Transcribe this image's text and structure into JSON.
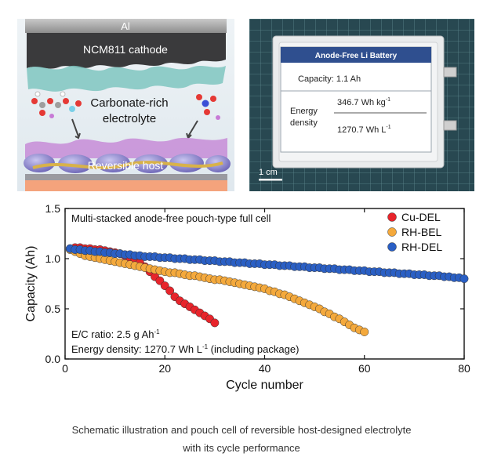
{
  "schematic": {
    "top_label": "Al",
    "cathode_label": "NCM811 cathode",
    "electrolyte_label_1": "Carbonate-rich",
    "electrolyte_label_2": "electrolyte",
    "host_label": "Reversible host"
  },
  "photo": {
    "card_title": "Anode-Free Li Battery",
    "capacity_text": "Capacity:  1.1 Ah",
    "energy_label_1": "Energy",
    "energy_label_2": "density",
    "energy_value_1": "346.7 Wh kg",
    "energy_value_1_sup": "-1",
    "energy_value_2": "1270.7 Wh L",
    "energy_value_2_sup": "-1",
    "scale_bar_label": "1 cm"
  },
  "chart_data": {
    "type": "scatter",
    "title": "Multi-stacked anode-free pouch-type full cell",
    "xlabel": "Cycle number",
    "ylabel": "Capacity (Ah)",
    "xlim": [
      0,
      80
    ],
    "ylim": [
      0.0,
      1.5
    ],
    "xticks": [
      0,
      20,
      40,
      60,
      80
    ],
    "yticks": [
      0.0,
      0.5,
      1.0,
      1.5
    ],
    "ytick_labels": [
      "0.0",
      "0.5",
      "1.0",
      "1.5"
    ],
    "legend_position": "top-right",
    "annotation_1": "E/C ratio: 2.5 g Ah",
    "annotation_1_sup": "-1",
    "annotation_2": "Energy density: 1270.7 Wh L",
    "annotation_2_sup": "-1",
    "annotation_2_tail": " (including package)",
    "series": [
      {
        "name": "Cu-DEL",
        "color": "#e8242b",
        "x": [
          1,
          2,
          3,
          4,
          5,
          6,
          7,
          8,
          9,
          10,
          11,
          12,
          13,
          14,
          15,
          16,
          17,
          18,
          19,
          20,
          21,
          22,
          23,
          24,
          25,
          26,
          27,
          28,
          29,
          30
        ],
        "y": [
          1.1,
          1.11,
          1.11,
          1.1,
          1.1,
          1.09,
          1.09,
          1.08,
          1.07,
          1.06,
          1.05,
          1.03,
          1.01,
          0.99,
          0.96,
          0.92,
          0.87,
          0.82,
          0.78,
          0.73,
          0.68,
          0.62,
          0.58,
          0.55,
          0.52,
          0.49,
          0.46,
          0.43,
          0.4,
          0.36
        ]
      },
      {
        "name": "RH-BEL",
        "color": "#f4a93c",
        "x": [
          1,
          2,
          3,
          4,
          5,
          6,
          7,
          8,
          9,
          10,
          11,
          12,
          13,
          14,
          15,
          16,
          17,
          18,
          19,
          20,
          21,
          22,
          23,
          24,
          25,
          26,
          27,
          28,
          29,
          30,
          31,
          32,
          33,
          34,
          35,
          36,
          37,
          38,
          39,
          40,
          41,
          42,
          43,
          44,
          45,
          46,
          47,
          48,
          49,
          50,
          51,
          52,
          53,
          54,
          55,
          56,
          57,
          58,
          59,
          60
        ],
        "y": [
          1.09,
          1.07,
          1.05,
          1.03,
          1.02,
          1.01,
          1.0,
          0.99,
          0.98,
          0.97,
          0.96,
          0.95,
          0.94,
          0.93,
          0.92,
          0.91,
          0.9,
          0.89,
          0.88,
          0.87,
          0.86,
          0.86,
          0.85,
          0.84,
          0.83,
          0.83,
          0.82,
          0.81,
          0.8,
          0.79,
          0.79,
          0.78,
          0.77,
          0.76,
          0.75,
          0.74,
          0.73,
          0.72,
          0.71,
          0.7,
          0.68,
          0.67,
          0.65,
          0.64,
          0.62,
          0.6,
          0.58,
          0.56,
          0.54,
          0.52,
          0.5,
          0.47,
          0.45,
          0.42,
          0.4,
          0.37,
          0.34,
          0.31,
          0.29,
          0.27
        ]
      },
      {
        "name": "RH-DEL",
        "color": "#2a5fc4",
        "x": [
          1,
          2,
          3,
          4,
          5,
          6,
          7,
          8,
          9,
          10,
          11,
          12,
          13,
          14,
          15,
          16,
          17,
          18,
          19,
          20,
          21,
          22,
          23,
          24,
          25,
          26,
          27,
          28,
          29,
          30,
          31,
          32,
          33,
          34,
          35,
          36,
          37,
          38,
          39,
          40,
          41,
          42,
          43,
          44,
          45,
          46,
          47,
          48,
          49,
          50,
          51,
          52,
          53,
          54,
          55,
          56,
          57,
          58,
          59,
          60,
          61,
          62,
          63,
          64,
          65,
          66,
          67,
          68,
          69,
          70,
          71,
          72,
          73,
          74,
          75,
          76,
          77,
          78,
          79,
          80
        ],
        "y": [
          1.1,
          1.09,
          1.09,
          1.08,
          1.08,
          1.07,
          1.07,
          1.06,
          1.06,
          1.05,
          1.05,
          1.04,
          1.04,
          1.03,
          1.03,
          1.02,
          1.02,
          1.02,
          1.01,
          1.01,
          1.01,
          1.0,
          1.0,
          1.0,
          0.99,
          0.99,
          0.99,
          0.98,
          0.98,
          0.98,
          0.97,
          0.97,
          0.97,
          0.96,
          0.96,
          0.96,
          0.95,
          0.95,
          0.95,
          0.94,
          0.94,
          0.94,
          0.93,
          0.93,
          0.93,
          0.92,
          0.92,
          0.92,
          0.91,
          0.91,
          0.91,
          0.9,
          0.9,
          0.9,
          0.89,
          0.89,
          0.89,
          0.88,
          0.88,
          0.88,
          0.87,
          0.87,
          0.87,
          0.86,
          0.86,
          0.86,
          0.85,
          0.85,
          0.85,
          0.84,
          0.84,
          0.84,
          0.83,
          0.83,
          0.83,
          0.82,
          0.82,
          0.81,
          0.81,
          0.8
        ]
      }
    ]
  },
  "caption": {
    "line1": "Schematic illustration and pouch cell of reversible host-designed electrolyte",
    "line2": "with its cycle performance"
  }
}
